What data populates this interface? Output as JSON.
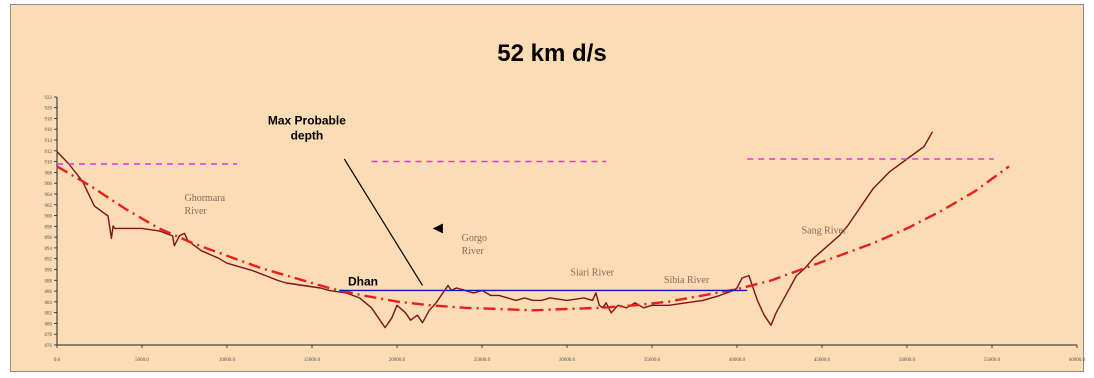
{
  "chart_data": {
    "type": "line",
    "title": "52 km d/s",
    "xlim": [
      0,
      60000
    ],
    "ylim": [
      0,
      100
    ],
    "x_ticks": [
      0,
      5000,
      10000,
      15000,
      20000,
      25000,
      30000,
      35000,
      40000,
      45000,
      50000,
      55000,
      60000
    ],
    "x_tick_labels": [
      "0.0",
      "5000.0",
      "10000.0",
      "15000.0",
      "20000.0",
      "25000.0",
      "30000.0",
      "35000.0",
      "40000.0",
      "45000.0",
      "50000.0",
      "55000.0",
      "60000.0"
    ],
    "y_ticks": [
      0,
      4.35,
      8.7,
      13.05,
      17.4,
      21.75,
      26.1,
      30.45,
      34.8,
      39.15,
      43.5,
      47.85,
      52.2,
      56.55,
      60.9,
      65.25,
      69.6,
      73.95,
      78.3,
      82.65,
      87,
      91.35,
      95.7,
      100
    ],
    "y_tick_labels": [
      "876",
      "878",
      "880",
      "882",
      "884",
      "886",
      "888",
      "890",
      "892",
      "894",
      "896",
      "898",
      "900",
      "902",
      "904",
      "906",
      "908",
      "910",
      "912",
      "914",
      "916",
      "918",
      "920",
      "922"
    ],
    "colors": {
      "ground": "#7a1418",
      "design": "#e8201c",
      "max_probable": "#e830e8",
      "water": "#1010e0",
      "frame": "#fbdcb4"
    },
    "series": [
      {
        "style": "solid",
        "color": "#7a1418",
        "x": [
          0,
          700,
          1500,
          2200,
          3000,
          3200,
          3300,
          3400,
          4000,
          5000,
          6000,
          6800,
          6900,
          7200,
          7500,
          7700,
          8500,
          9500,
          10000,
          11500,
          13000,
          13500,
          14500,
          15500,
          16000,
          17000,
          17800,
          18500,
          19300,
          19700,
          20000,
          20500,
          20800,
          21200,
          21500,
          21900,
          22300,
          22700,
          23000,
          23200,
          23500,
          24000,
          24500,
          25000,
          25500,
          26000,
          27000,
          27500,
          28000,
          28500,
          29000,
          30000,
          31000,
          31500,
          31700,
          31900,
          32100,
          32300,
          32600,
          33000,
          33500,
          34000,
          34500,
          35000,
          36000,
          37000,
          38000,
          39000,
          39800,
          40000,
          40300,
          40700,
          41200,
          41600,
          42000,
          42300,
          42700,
          43100,
          43500,
          44000,
          44500,
          45000,
          45500,
          46000,
          46500,
          47000,
          47500,
          48000,
          49000,
          50000,
          51000,
          51500
        ],
        "y": [
          78,
          73,
          66,
          56,
          52,
          43,
          48,
          47,
          47,
          47,
          46,
          44,
          40,
          44,
          45,
          42,
          38,
          35,
          33,
          30,
          26,
          25,
          24,
          23,
          22,
          21,
          19,
          15,
          7,
          11,
          16,
          13,
          10,
          12,
          9,
          14,
          17,
          21,
          24,
          22,
          23,
          22,
          21,
          22,
          20,
          20,
          18,
          19,
          18,
          18,
          19,
          18,
          19,
          18,
          21,
          16,
          15,
          17,
          13,
          16,
          15,
          17,
          15,
          16,
          16,
          17,
          18,
          20,
          22,
          23,
          27,
          28,
          18,
          12,
          8,
          13,
          18,
          23,
          28,
          31,
          35,
          38,
          41,
          44,
          48,
          53,
          58,
          63,
          70,
          75,
          80,
          86
        ]
      },
      {
        "style": "dash-dot",
        "color": "#e8201c",
        "x": [
          0,
          2000,
          4000,
          6000,
          8000,
          10000,
          12000,
          14000,
          16000,
          18000,
          20000,
          22000,
          24000,
          26000,
          28000,
          30000,
          32000,
          34000,
          36000,
          38000,
          40000,
          42000,
          44000,
          46000,
          48000,
          50000,
          52000,
          54000,
          56000
        ],
        "y": [
          72,
          64,
          55,
          47,
          41,
          36,
          31,
          27,
          23,
          20,
          17.5,
          16,
          15,
          14.5,
          14,
          14.5,
          15,
          16,
          17.5,
          20,
          22.5,
          26,
          31,
          36,
          41,
          47,
          54,
          62,
          72
        ]
      },
      {
        "style": "dashed",
        "color": "#e830e8",
        "segments": [
          {
            "x": [
              0,
              10600
            ],
            "y": [
              73,
              73
            ]
          },
          {
            "x": [
              18500,
              32300
            ],
            "y": [
              74,
              74
            ]
          },
          {
            "x": [
              40600,
              55100
            ],
            "y": [
              75,
              75
            ]
          }
        ]
      },
      {
        "style": "solid",
        "color": "#1010e0",
        "x": [
          16600,
          40600
        ],
        "y": [
          22,
          22
        ]
      }
    ],
    "annotations": [
      {
        "text_lines": [
          "Ghormara",
          "River"
        ],
        "x": 7500,
        "y": 58,
        "style": "serif"
      },
      {
        "text_lines": [
          "Gorgo",
          "River"
        ],
        "x": 23800,
        "y": 42,
        "style": "serif"
      },
      {
        "text_lines": [
          "Siari River"
        ],
        "x": 30200,
        "y": 28,
        "style": "serif"
      },
      {
        "text_lines": [
          "Sibia River"
        ],
        "x": 35700,
        "y": 25,
        "style": "serif"
      },
      {
        "text_lines": [
          "Sang River"
        ],
        "x": 43800,
        "y": 45,
        "style": "serif"
      },
      {
        "text_lines": [
          "Max Probable",
          "depth"
        ],
        "x": 14700,
        "y": 89,
        "style": "bold"
      },
      {
        "text_lines": [
          "Dhan"
        ],
        "x": 18000,
        "y": 24,
        "style": "bold"
      }
    ]
  }
}
